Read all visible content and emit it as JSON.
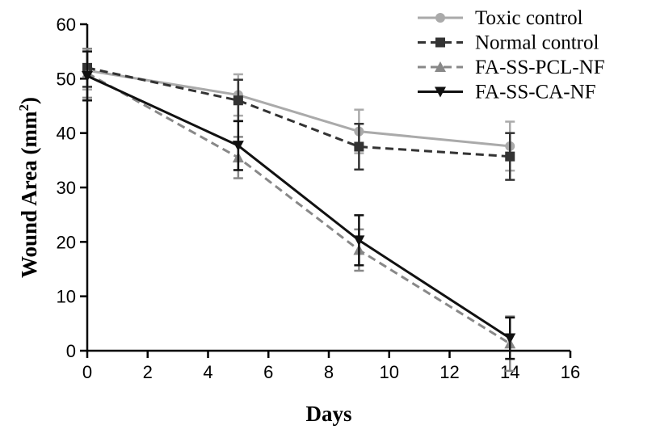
{
  "chart_data": {
    "type": "line",
    "title": "",
    "xlabel": "Days",
    "ylabel": "Wound Area (mm",
    "ylabel_sup": "2",
    "ylabel_end": ")",
    "xlim": [
      0,
      16
    ],
    "ylim": [
      0,
      60
    ],
    "xticks": [
      "0",
      "2",
      "4",
      "6",
      "8",
      "10",
      "12",
      "14",
      "16"
    ],
    "yticks": [
      "0",
      "10",
      "20",
      "30",
      "40",
      "50",
      "60"
    ],
    "grid": false,
    "legend_position": "top-right",
    "series": [
      {
        "name": "Toxic control",
        "x": [
          0,
          5,
          9,
          14
        ],
        "values": [
          51.5,
          47,
          40.3,
          37.6
        ],
        "errors": [
          3.5,
          3.8,
          4,
          4.5
        ],
        "color": "#aaaaaa",
        "dash": "solid",
        "marker": "circle"
      },
      {
        "name": "Normal control",
        "x": [
          0,
          5,
          9,
          14
        ],
        "values": [
          52,
          46,
          37.5,
          35.7
        ],
        "errors": [
          3.5,
          3.8,
          4.2,
          4.3
        ],
        "color": "#333333",
        "dash": "dashed",
        "marker": "square"
      },
      {
        "name": "FA-SS-PCL-NF",
        "x": [
          0,
          5,
          9,
          14
        ],
        "values": [
          51,
          35.5,
          18.5,
          1.3
        ],
        "errors": [
          4.5,
          3.8,
          3.8,
          5
        ],
        "color": "#888888",
        "dash": "dashed",
        "marker": "triangle-up"
      },
      {
        "name": "FA-SS-CA-NF",
        "x": [
          0,
          5,
          9,
          14
        ],
        "values": [
          50.5,
          37.7,
          20.3,
          2.3
        ],
        "errors": [
          4.5,
          4.5,
          4.6,
          3.8
        ],
        "color": "#111111",
        "dash": "solid",
        "marker": "triangle-down"
      }
    ]
  }
}
